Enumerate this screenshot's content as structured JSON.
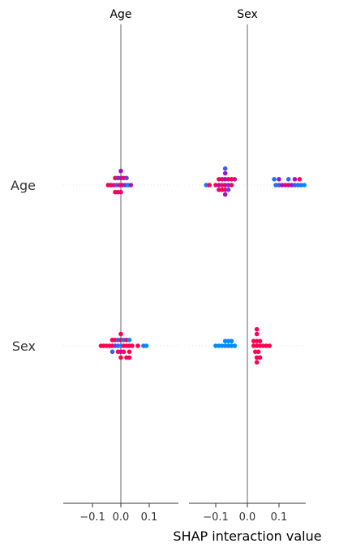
{
  "chart_data": {
    "type": "scatter",
    "subtype": "shap-interaction-beeswarm",
    "xlabel": "SHAP interaction value",
    "features": [
      "Age",
      "Sex"
    ],
    "columns": [
      {
        "title": "Age",
        "xlim": [
          -0.2,
          0.2
        ],
        "ticks": [
          -0.1,
          0.0,
          0.1
        ],
        "tick_labels": [
          "−0.1",
          "0.0",
          "0.1"
        ]
      },
      {
        "title": "Sex",
        "xlim": [
          -0.2,
          0.2
        ],
        "ticks": [
          -0.1,
          0.0,
          0.1
        ],
        "tick_labels": [
          "−0.1",
          "0.0",
          "0.1"
        ]
      }
    ],
    "colors": {
      "low": "#008bfb",
      "mid": "#a012c8",
      "high": "#ff0052",
      "zero_line": "#999999",
      "row_guide": "#e6e6e6"
    },
    "cells": [
      {
        "row": "Age",
        "col": "Age",
        "points": [
          [
            0.0,
            3.0,
            0.5
          ],
          [
            -0.02,
            1.5,
            1.0
          ],
          [
            -0.01,
            1.5,
            0.4
          ],
          [
            0.0,
            1.5,
            0.7
          ],
          [
            0.01,
            1.5,
            0.9
          ],
          [
            0.02,
            1.5,
            0.3
          ],
          [
            -0.045,
            0,
            1.0
          ],
          [
            -0.035,
            0,
            1.0
          ],
          [
            -0.025,
            0,
            0.8
          ],
          [
            -0.015,
            0,
            0.2
          ],
          [
            -0.005,
            0,
            0.9
          ],
          [
            0.005,
            0,
            0.7
          ],
          [
            0.015,
            0,
            0.4
          ],
          [
            0.025,
            0,
            0.0
          ],
          [
            0.035,
            0,
            0.6
          ],
          [
            -0.02,
            -1.5,
            1.0
          ],
          [
            -0.01,
            -1.5,
            0.9
          ],
          [
            0.0,
            -1.5,
            0.9
          ]
        ]
      },
      {
        "row": "Age",
        "col": "Sex",
        "points": [
          [
            -0.07,
            3.5,
            0.2
          ],
          [
            -0.07,
            2.5,
            0.5
          ],
          [
            -0.09,
            1.25,
            1.0
          ],
          [
            -0.08,
            1.25,
            0.8
          ],
          [
            -0.07,
            1.25,
            0.6
          ],
          [
            -0.06,
            1.25,
            0.9
          ],
          [
            -0.05,
            1.25,
            1.0
          ],
          [
            -0.04,
            1.25,
            0.7
          ],
          [
            -0.13,
            0,
            0.1
          ],
          [
            -0.12,
            0,
            1.0
          ],
          [
            -0.1,
            0,
            1.0
          ],
          [
            -0.09,
            0,
            0.5
          ],
          [
            -0.08,
            0,
            1.0
          ],
          [
            -0.07,
            0,
            0.8
          ],
          [
            -0.06,
            0,
            0.4
          ],
          [
            -0.05,
            0,
            0.9
          ],
          [
            -0.09,
            -1,
            0.8
          ],
          [
            -0.08,
            -1,
            1.0
          ],
          [
            -0.07,
            -1,
            1.0
          ],
          [
            -0.06,
            -1,
            0.3
          ],
          [
            -0.07,
            -2,
            0.5
          ],
          [
            0.085,
            1.25,
            0.1
          ],
          [
            0.1,
            1.25,
            0.5
          ],
          [
            0.13,
            1.25,
            0.1
          ],
          [
            0.15,
            1.25,
            0.5
          ],
          [
            0.165,
            1.25,
            1.0
          ],
          [
            0.09,
            0,
            0.1
          ],
          [
            0.1,
            0,
            0.2
          ],
          [
            0.11,
            0,
            0.5
          ],
          [
            0.12,
            0,
            0.8
          ],
          [
            0.13,
            0,
            0.9
          ],
          [
            0.14,
            0,
            0.5
          ],
          [
            0.15,
            0,
            0.2
          ],
          [
            0.16,
            0,
            0.1
          ],
          [
            0.17,
            0,
            0.1
          ],
          [
            0.18,
            0,
            0.0
          ]
        ]
      },
      {
        "row": "Sex",
        "col": "Age",
        "points": [
          [
            0.0,
            2.5,
            1.0
          ],
          [
            -0.03,
            1.25,
            1.0
          ],
          [
            -0.02,
            1.25,
            1.0
          ],
          [
            -0.01,
            1.25,
            0.2
          ],
          [
            0.0,
            1.25,
            1.0
          ],
          [
            0.01,
            1.25,
            0.1
          ],
          [
            0.02,
            1.25,
            1.0
          ],
          [
            0.03,
            1.25,
            0.0
          ],
          [
            -0.07,
            0,
            1.0
          ],
          [
            -0.06,
            0,
            1.0
          ],
          [
            -0.05,
            0,
            1.0
          ],
          [
            -0.04,
            0,
            1.0
          ],
          [
            -0.03,
            0,
            1.0
          ],
          [
            -0.02,
            0,
            0.3
          ],
          [
            -0.01,
            0,
            0.2
          ],
          [
            0.0,
            0,
            0.0
          ],
          [
            0.01,
            0,
            1.0
          ],
          [
            0.02,
            0,
            1.0
          ],
          [
            0.03,
            0,
            1.0
          ],
          [
            0.04,
            0,
            1.0
          ],
          [
            0.06,
            0,
            1.0
          ],
          [
            0.08,
            0,
            0.1
          ],
          [
            0.09,
            0,
            0.0
          ],
          [
            -0.03,
            -1.25,
            0.2
          ],
          [
            -0.01,
            -1.25,
            1.0
          ],
          [
            0.0,
            -1.25,
            0.6
          ],
          [
            0.01,
            -1.25,
            1.0
          ],
          [
            0.03,
            -1.25,
            1.0
          ],
          [
            0.0,
            -2.5,
            1.0
          ],
          [
            0.02,
            -2.5,
            1.0
          ],
          [
            0.03,
            -2.5,
            1.0
          ]
        ]
      },
      {
        "row": "Sex",
        "col": "Sex",
        "points": [
          [
            -0.07,
            1.0,
            0.0
          ],
          [
            -0.06,
            1.0,
            0.0
          ],
          [
            -0.05,
            1.0,
            0.0
          ],
          [
            -0.1,
            0,
            0.0
          ],
          [
            -0.09,
            0,
            0.0
          ],
          [
            -0.08,
            0,
            0.0
          ],
          [
            -0.07,
            0,
            0.0
          ],
          [
            -0.06,
            0,
            0.0
          ],
          [
            -0.05,
            0,
            0.0
          ],
          [
            -0.04,
            0,
            0.0
          ],
          [
            0.03,
            3.5,
            1.0
          ],
          [
            0.03,
            2.5,
            1.0
          ],
          [
            0.02,
            1.0,
            1.0
          ],
          [
            0.03,
            1.0,
            1.0
          ],
          [
            0.04,
            1.0,
            1.0
          ],
          [
            0.02,
            0,
            1.0
          ],
          [
            0.03,
            0,
            1.0
          ],
          [
            0.04,
            0,
            1.0
          ],
          [
            0.05,
            0,
            1.0
          ],
          [
            0.06,
            0,
            1.0
          ],
          [
            0.07,
            0,
            1.0
          ],
          [
            0.025,
            -1.25,
            1.0
          ],
          [
            0.035,
            -1.25,
            1.0
          ],
          [
            0.03,
            -2.5,
            1.0
          ],
          [
            0.04,
            -2.5,
            1.0
          ],
          [
            0.03,
            -3.5,
            1.0
          ]
        ]
      }
    ]
  }
}
